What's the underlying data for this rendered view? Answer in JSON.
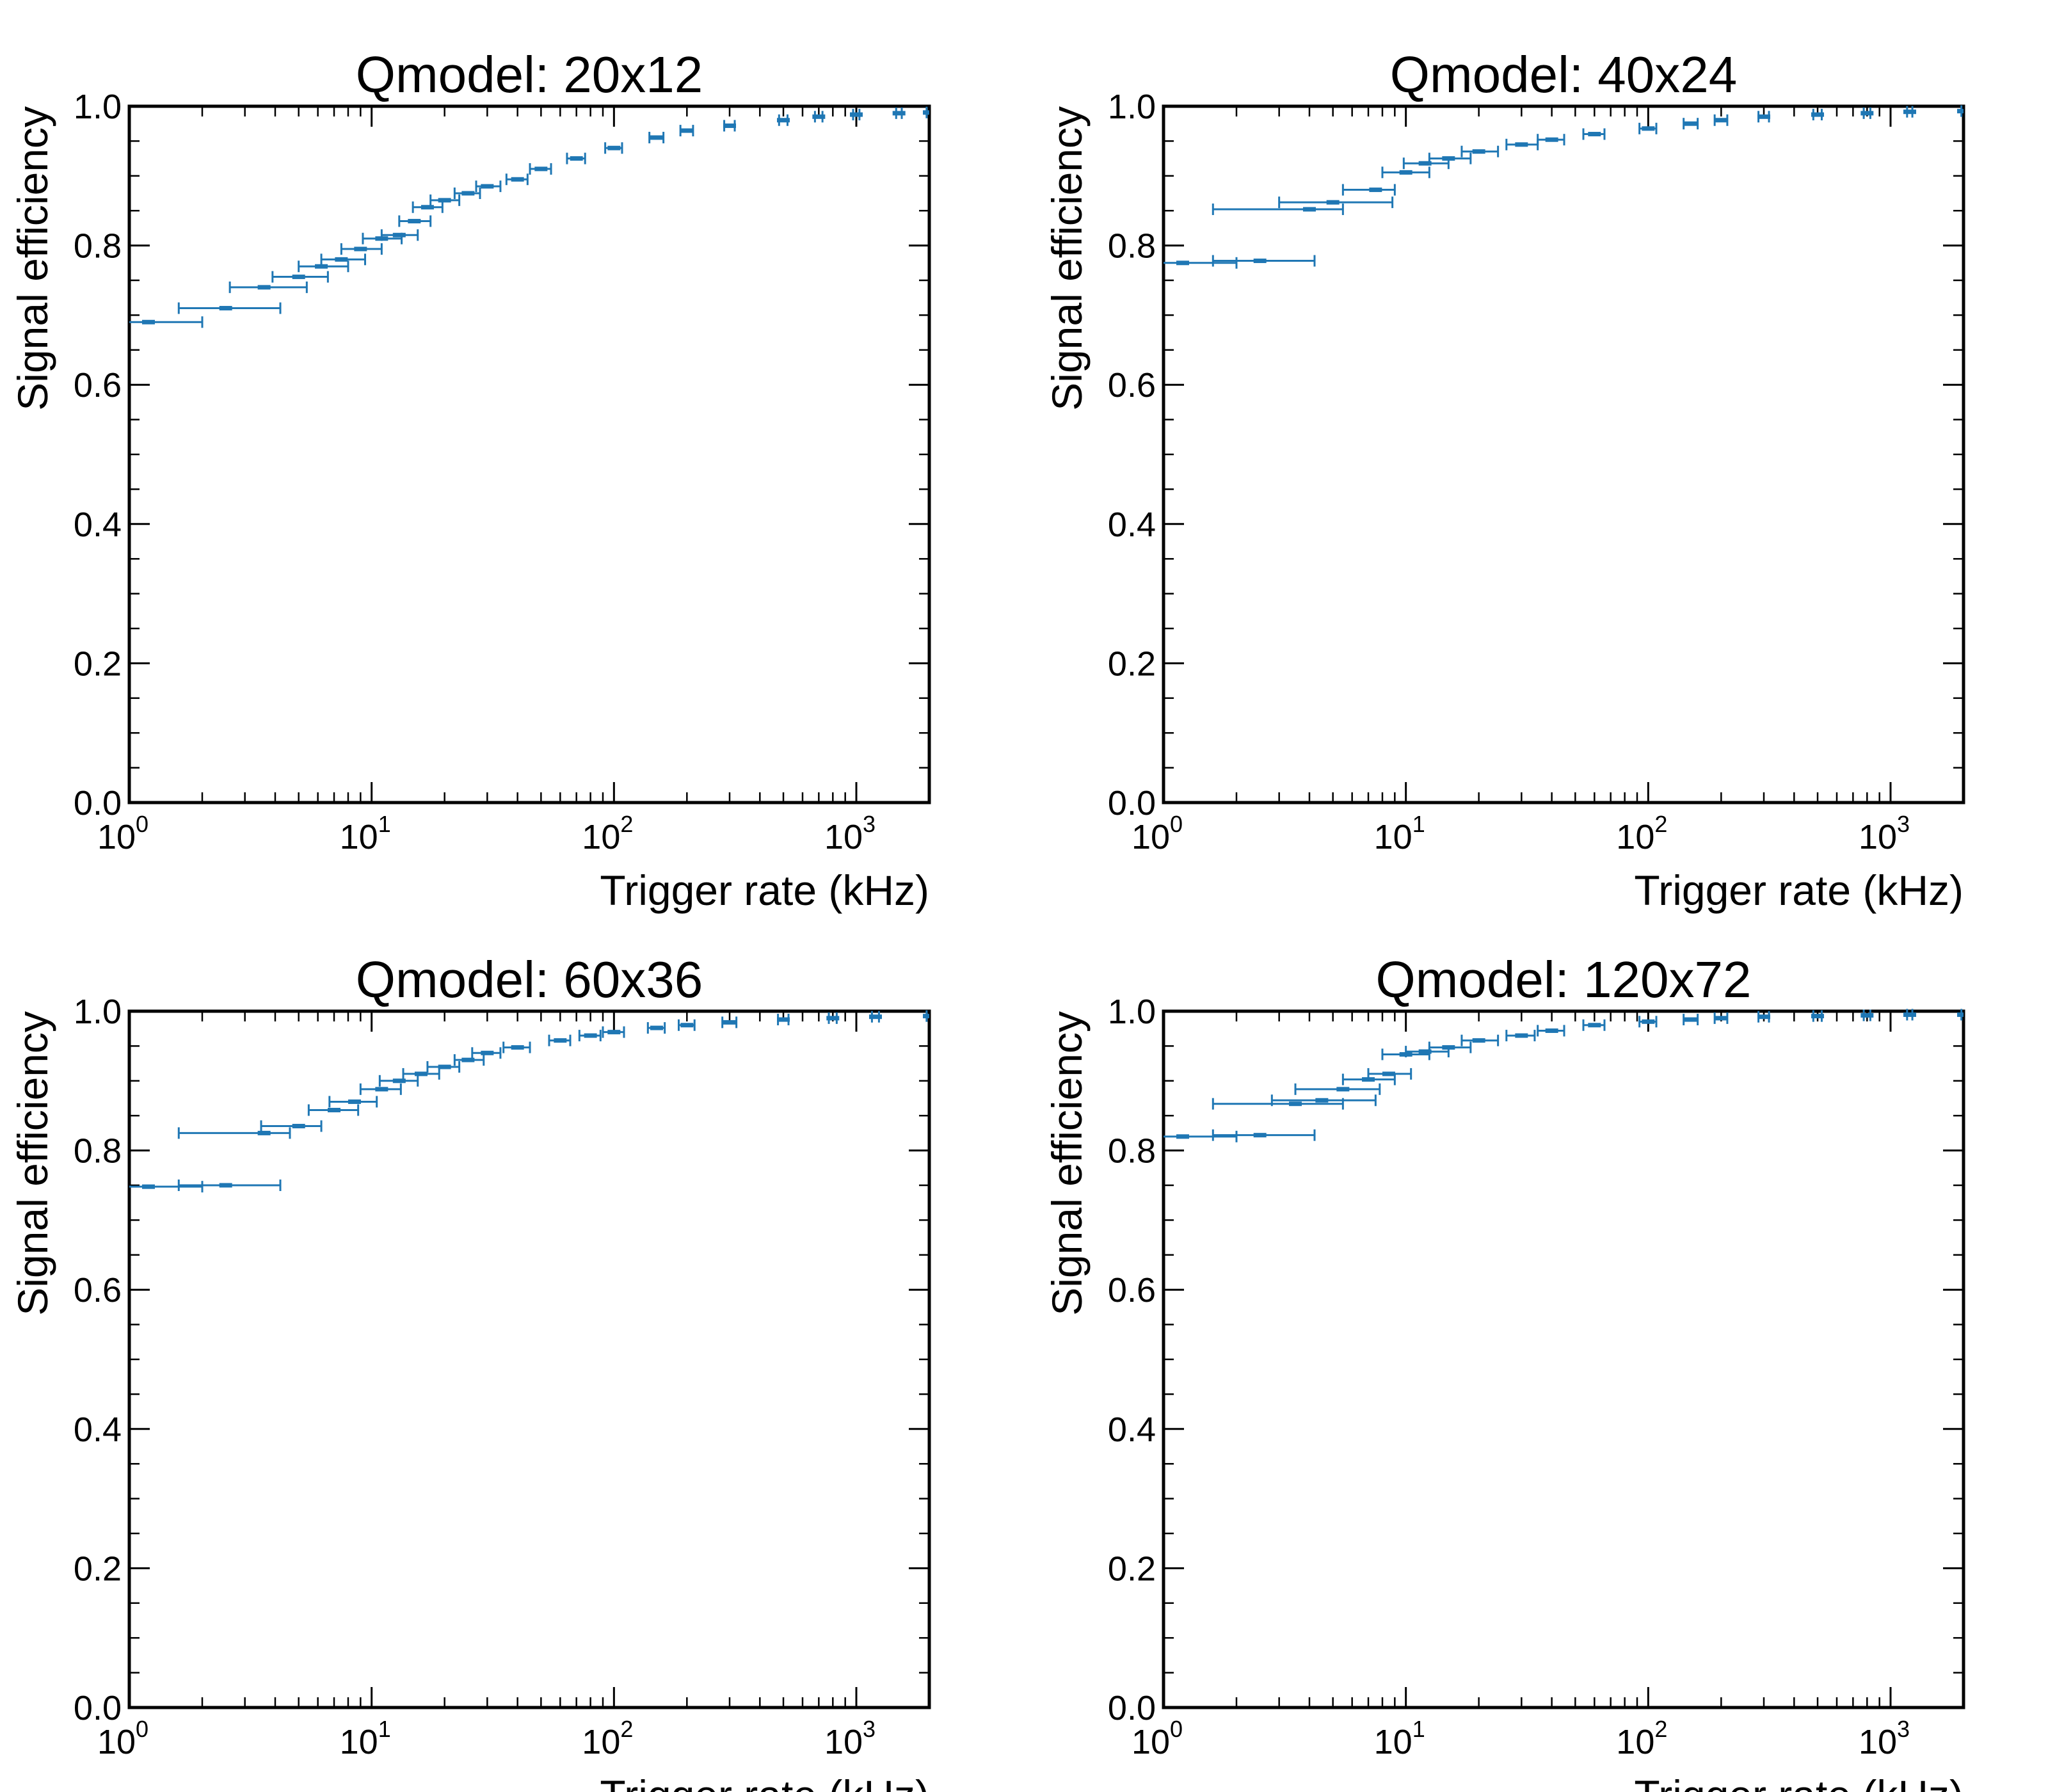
{
  "colors": {
    "series": "#1f77b4",
    "axes": "#000000"
  },
  "chart_data": [
    {
      "type": "scatter",
      "title": "Qmodel: 20x12",
      "xlabel": "Trigger rate (kHz)",
      "ylabel": "Signal efficiency",
      "xscale": "log",
      "xlim": [
        1,
        2000
      ],
      "ylim": [
        0,
        1
      ],
      "xticks": [
        "10",
        "10",
        "10",
        "10"
      ],
      "xtick_exponents": [
        "0",
        "1",
        "2",
        "3"
      ],
      "yticks": [
        "0.0",
        "0.2",
        "0.4",
        "0.6",
        "0.8",
        "1.0"
      ],
      "series": [
        {
          "x": [
            1.2,
            2.5,
            3.6,
            5.0,
            6.2,
            7.5,
            9.0,
            11,
            13,
            15,
            17,
            20,
            25,
            30,
            40,
            50,
            70,
            100,
            150,
            200,
            300,
            500,
            700,
            1000,
            1500,
            2000
          ],
          "y": [
            0.69,
            0.71,
            0.74,
            0.755,
            0.77,
            0.78,
            0.795,
            0.81,
            0.815,
            0.835,
            0.855,
            0.865,
            0.875,
            0.885,
            0.895,
            0.91,
            0.925,
            0.94,
            0.955,
            0.965,
            0.972,
            0.98,
            0.985,
            0.988,
            0.99,
            0.991
          ],
          "xerr_low": [
            0.5,
            0.9,
            1.0,
            1.1,
            1.2,
            1.3,
            1.5,
            1.8,
            2.0,
            2.0,
            2.2,
            2.5,
            3,
            3,
            4,
            5,
            6,
            8,
            10,
            12,
            15,
            20,
            25,
            30,
            40,
            50
          ],
          "xerr_high": [
            0.8,
            1.7,
            1.8,
            1.6,
            1.8,
            1.9,
            2.0,
            2.3,
            2.5,
            2.5,
            2.6,
            3,
            3,
            4,
            4,
            5,
            6,
            8,
            10,
            12,
            15,
            20,
            25,
            30,
            40,
            50
          ]
        }
      ]
    },
    {
      "type": "scatter",
      "title": "Qmodel: 40x24",
      "xlabel": "Trigger rate (kHz)",
      "ylabel": "Signal efficiency",
      "xscale": "log",
      "xlim": [
        1,
        2000
      ],
      "ylim": [
        0,
        1
      ],
      "xticks": [
        "10",
        "10",
        "10",
        "10"
      ],
      "xtick_exponents": [
        "0",
        "1",
        "2",
        "3"
      ],
      "yticks": [
        "0.0",
        "0.2",
        "0.4",
        "0.6",
        "0.8",
        "1.0"
      ],
      "series": [
        {
          "x": [
            1.2,
            2.5,
            4.0,
            5.0,
            7.5,
            10,
            12,
            15,
            20,
            30,
            40,
            60,
            100,
            150,
            200,
            300,
            500,
            800,
            1200,
            2000
          ],
          "y": [
            0.775,
            0.778,
            0.852,
            0.862,
            0.88,
            0.905,
            0.918,
            0.925,
            0.935,
            0.945,
            0.952,
            0.96,
            0.968,
            0.975,
            0.98,
            0.985,
            0.988,
            0.99,
            0.992,
            0.993
          ],
          "xerr_low": [
            0.5,
            0.9,
            2.4,
            2.0,
            2.0,
            2.0,
            2.2,
            2.5,
            3,
            4,
            5,
            6,
            8,
            10,
            12,
            15,
            20,
            25,
            30,
            40
          ],
          "xerr_high": [
            0.8,
            1.7,
            1.5,
            3.8,
            1.5,
            2.5,
            3.0,
            3.5,
            4,
            5,
            5,
            6,
            8,
            10,
            12,
            15,
            20,
            25,
            30,
            40
          ]
        }
      ]
    },
    {
      "type": "scatter",
      "title": "Qmodel: 60x36",
      "xlabel": "Trigger rate (kHz)",
      "ylabel": "Signal efficiency",
      "xscale": "log",
      "xlim": [
        1,
        2000
      ],
      "ylim": [
        0,
        1
      ],
      "xticks": [
        "10",
        "10",
        "10",
        "10"
      ],
      "xtick_exponents": [
        "0",
        "1",
        "2",
        "3"
      ],
      "yticks": [
        "0.0",
        "0.2",
        "0.4",
        "0.6",
        "0.8",
        "1.0"
      ],
      "series": [
        {
          "x": [
            1.2,
            2.5,
            3.6,
            5.0,
            7.0,
            8.5,
            11,
            13,
            16,
            20,
            25,
            30,
            40,
            60,
            80,
            100,
            150,
            200,
            300,
            500,
            800,
            1200,
            2000
          ],
          "y": [
            0.748,
            0.75,
            0.825,
            0.835,
            0.858,
            0.87,
            0.888,
            0.9,
            0.91,
            0.92,
            0.93,
            0.94,
            0.948,
            0.958,
            0.965,
            0.97,
            0.976,
            0.98,
            0.984,
            0.988,
            0.99,
            0.992,
            0.993
          ],
          "xerr_low": [
            0.5,
            0.9,
            2.0,
            1.5,
            1.5,
            1.8,
            2.0,
            2.2,
            2.5,
            3,
            3,
            4,
            5,
            6,
            8,
            10,
            12,
            15,
            20,
            25,
            30,
            40,
            50
          ],
          "xerr_high": [
            0.8,
            1.7,
            1.0,
            1.2,
            1.8,
            2.0,
            2.2,
            2.5,
            3,
            3,
            4,
            4,
            5,
            6,
            8,
            10,
            12,
            15,
            20,
            25,
            30,
            40,
            50
          ]
        }
      ]
    },
    {
      "type": "scatter",
      "title": "Qmodel: 120x72",
      "xlabel": "Trigger rate (kHz)",
      "ylabel": "Signal efficiency",
      "xscale": "log",
      "xlim": [
        1,
        2000
      ],
      "ylim": [
        0,
        1
      ],
      "xticks": [
        "10",
        "10",
        "10",
        "10"
      ],
      "xtick_exponents": [
        "0",
        "1",
        "2",
        "3"
      ],
      "yticks": [
        "0.0",
        "0.2",
        "0.4",
        "0.6",
        "0.8",
        "1.0"
      ],
      "series": [
        {
          "x": [
            1.2,
            2.5,
            3.5,
            4.5,
            5.5,
            7.0,
            8.5,
            10,
            12,
            15,
            20,
            30,
            40,
            60,
            100,
            150,
            200,
            300,
            500,
            800,
            1200,
            2000
          ],
          "y": [
            0.82,
            0.822,
            0.867,
            0.872,
            0.888,
            0.902,
            0.91,
            0.938,
            0.942,
            0.948,
            0.958,
            0.965,
            0.972,
            0.98,
            0.985,
            0.988,
            0.99,
            0.992,
            0.993,
            0.994,
            0.995,
            0.995
          ],
          "xerr_low": [
            0.5,
            0.9,
            1.9,
            1.7,
            2.0,
            1.5,
            1.5,
            2.0,
            2.0,
            2.5,
            3,
            4,
            5,
            6,
            8,
            10,
            12,
            15,
            20,
            25,
            30,
            40
          ],
          "xerr_high": [
            0.8,
            1.7,
            2.0,
            3.0,
            2.3,
            2.0,
            2.0,
            2.5,
            3.0,
            3.5,
            4,
            4,
            5,
            6,
            8,
            10,
            12,
            15,
            20,
            25,
            30,
            40
          ]
        }
      ]
    }
  ]
}
